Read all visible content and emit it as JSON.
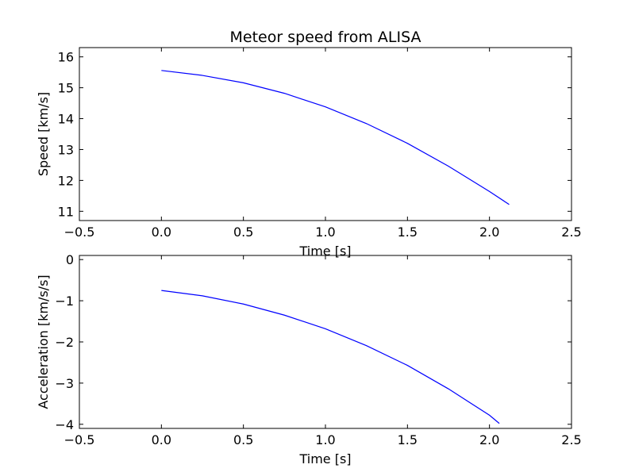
{
  "chart_data": [
    {
      "type": "line",
      "title": "Meteor speed from  ALISA",
      "xlabel": "Time [s]",
      "ylabel": "Speed [km/s]",
      "xlim": [
        -0.5,
        2.5
      ],
      "ylim": [
        10.7,
        16.3
      ],
      "xticks": [
        -0.5,
        0.0,
        0.5,
        1.0,
        1.5,
        2.0,
        2.5
      ],
      "xtick_labels": [
        "−0.5",
        "0.0",
        "0.5",
        "1.0",
        "1.5",
        "2.0",
        "2.5"
      ],
      "yticks": [
        11,
        12,
        13,
        14,
        15,
        16
      ],
      "ytick_labels": [
        "11",
        "12",
        "13",
        "14",
        "15",
        "16"
      ],
      "grid": false,
      "color": "#0000ff",
      "series": [
        {
          "x": [
            0.0,
            0.25,
            0.5,
            0.75,
            1.0,
            1.25,
            1.5,
            1.75,
            2.0,
            2.12
          ],
          "y": [
            15.56,
            15.4,
            15.16,
            14.82,
            14.38,
            13.84,
            13.2,
            12.46,
            11.64,
            11.22
          ]
        }
      ]
    },
    {
      "type": "line",
      "title": "",
      "xlabel": "Time [s]",
      "ylabel": "Acceleration [km/s/s]",
      "xlim": [
        -0.5,
        2.5
      ],
      "ylim": [
        -4.1,
        0.1
      ],
      "xticks": [
        -0.5,
        0.0,
        0.5,
        1.0,
        1.5,
        2.0,
        2.5
      ],
      "xtick_labels": [
        "−0.5",
        "0.0",
        "0.5",
        "1.0",
        "1.5",
        "2.0",
        "2.5"
      ],
      "yticks": [
        0,
        -1,
        -2,
        -3,
        -4
      ],
      "ytick_labels": [
        "0",
        "−1",
        "−2",
        "−3",
        "−4"
      ],
      "grid": false,
      "color": "#0000ff",
      "series": [
        {
          "x": [
            0.0,
            0.25,
            0.5,
            0.75,
            1.0,
            1.25,
            1.5,
            1.75,
            2.0,
            2.06
          ],
          "y": [
            -0.75,
            -0.88,
            -1.08,
            -1.35,
            -1.68,
            -2.09,
            -2.57,
            -3.14,
            -3.78,
            -3.98
          ]
        }
      ]
    }
  ]
}
